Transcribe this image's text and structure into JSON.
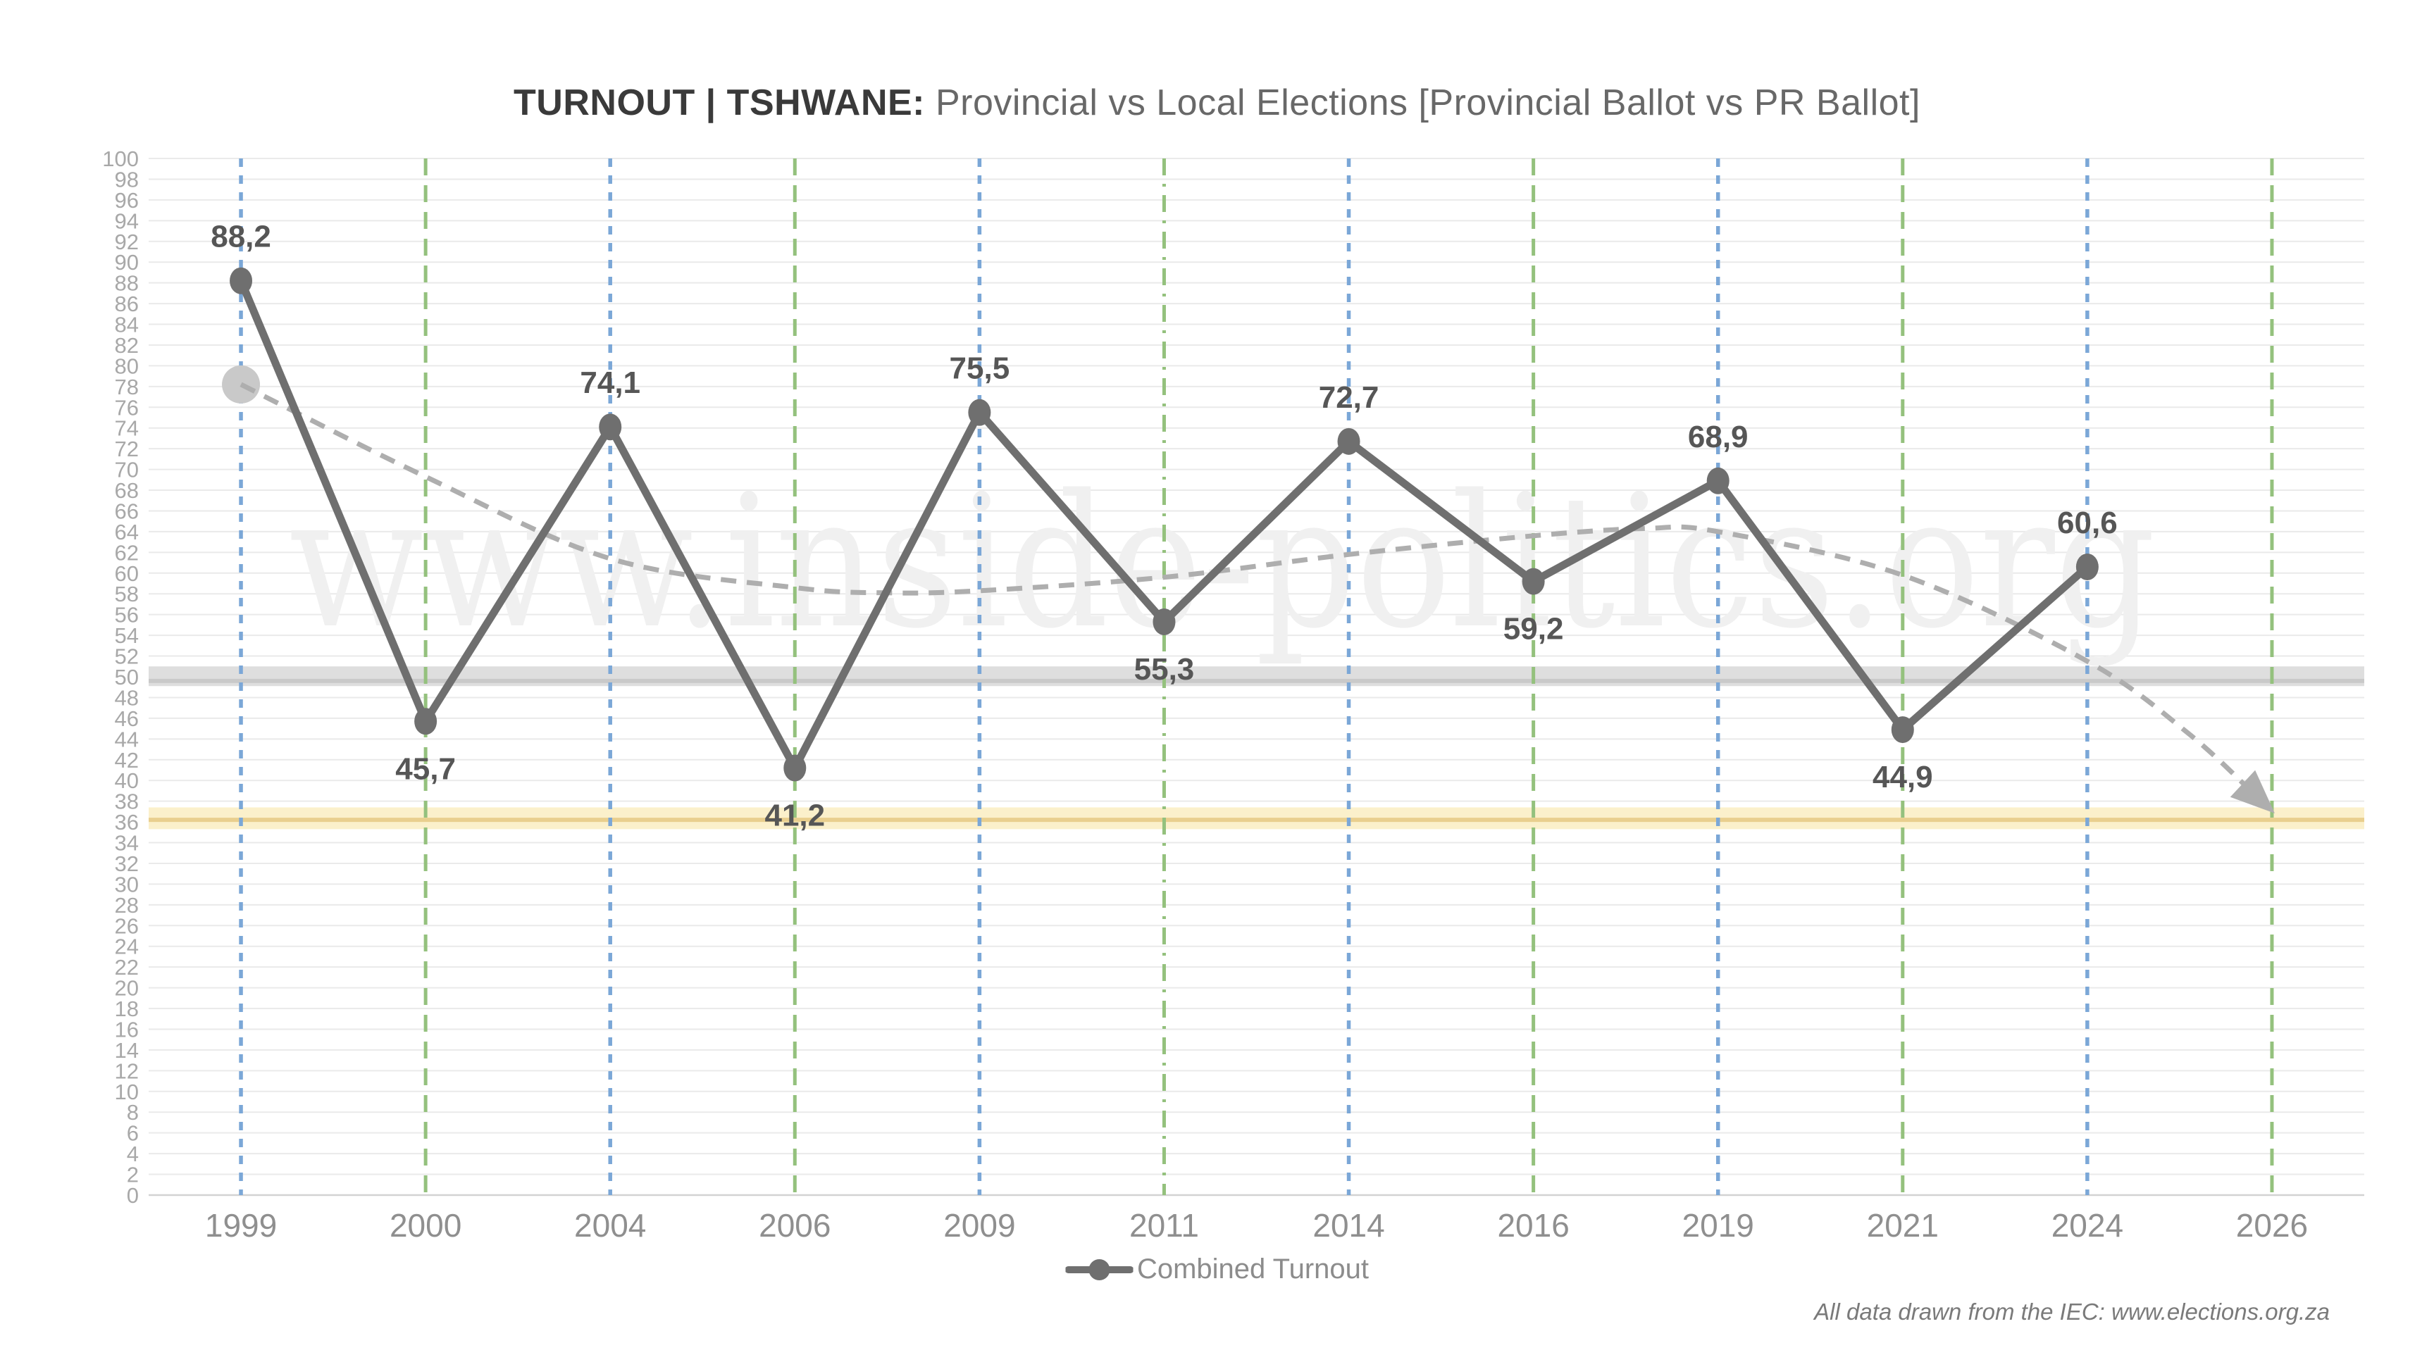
{
  "title": {
    "bold": "TURNOUT | TSHWANE:",
    "rest": " Provincial vs Local Elections [Provincial Ballot vs PR Ballot]"
  },
  "legend": {
    "label": "Combined Turnout"
  },
  "footer": {
    "text": "All data drawn from the IEC: www.elections.org.za"
  },
  "watermark": {
    "text": "www.inside-politics.org"
  },
  "chart_data": {
    "type": "line",
    "title": "TURNOUT | TSHWANE: Provincial vs Local Elections [Provincial Ballot vs PR Ballot]",
    "categories": [
      "1999",
      "2000",
      "2004",
      "2006",
      "2009",
      "2011",
      "2014",
      "2016",
      "2019",
      "2021",
      "2024",
      "2026"
    ],
    "series": [
      {
        "name": "Combined Turnout",
        "values": [
          88.2,
          45.7,
          74.1,
          41.2,
          75.5,
          55.3,
          72.7,
          59.2,
          68.9,
          44.9,
          60.6,
          null
        ],
        "label_position": [
          "above",
          "below",
          "above",
          "below",
          "above",
          "below",
          "above",
          "below",
          "above",
          "below",
          "above",
          null
        ]
      }
    ],
    "ylim": [
      0,
      100
    ],
    "ytick_step": 2,
    "grid": "horizontal",
    "legend_position": "bottom",
    "guides": {
      "provincial_indices": [
        0,
        2,
        4,
        6,
        8,
        10
      ],
      "local_indices": [
        1,
        3,
        5,
        7,
        9,
        11
      ],
      "dashdot_index": 5
    },
    "reference_bands": [
      {
        "name": "majority-50",
        "center": 50,
        "top": 51.0,
        "bottom": 49.1,
        "line_at": 49.6
      },
      {
        "name": "threshold-36",
        "center": 36,
        "top": 37.4,
        "bottom": 35.3,
        "line_at": 36.2
      }
    ],
    "trendline": {
      "points_index_value": [
        [
          0,
          78.2
        ],
        [
          1,
          69.3
        ],
        [
          2,
          61.4
        ],
        [
          3,
          58.6
        ],
        [
          3.5,
          58.1
        ],
        [
          4,
          58.3
        ],
        [
          5,
          59.6
        ],
        [
          6,
          61.8
        ],
        [
          7,
          63.6
        ],
        [
          7.6,
          64.3
        ],
        [
          8,
          64.0
        ],
        [
          9,
          59.8
        ],
        [
          10,
          51.5
        ],
        [
          10.55,
          44.5
        ],
        [
          10.92,
          38.4
        ]
      ],
      "start_dot_value": 78.2
    }
  },
  "colors": {
    "series_line": "#6f6f6f",
    "data_label": "#565656",
    "trend": "#aeaeae",
    "trend_start_dot": "#c9c9c9",
    "guide_blue": "#7ba7d7",
    "guide_green": "#94c17d",
    "grid": "#eaeaea",
    "axis_line": "#d2d2d2",
    "y_tick": "#a8a8a8",
    "x_tick": "#8f8f8f",
    "band_gray": "#dedede",
    "band_gray_line": "#c9c9c9",
    "band_yellow": "#fbf0cb",
    "band_yellow_line": "#e9cf8e",
    "watermark": "#f0f0f0"
  }
}
